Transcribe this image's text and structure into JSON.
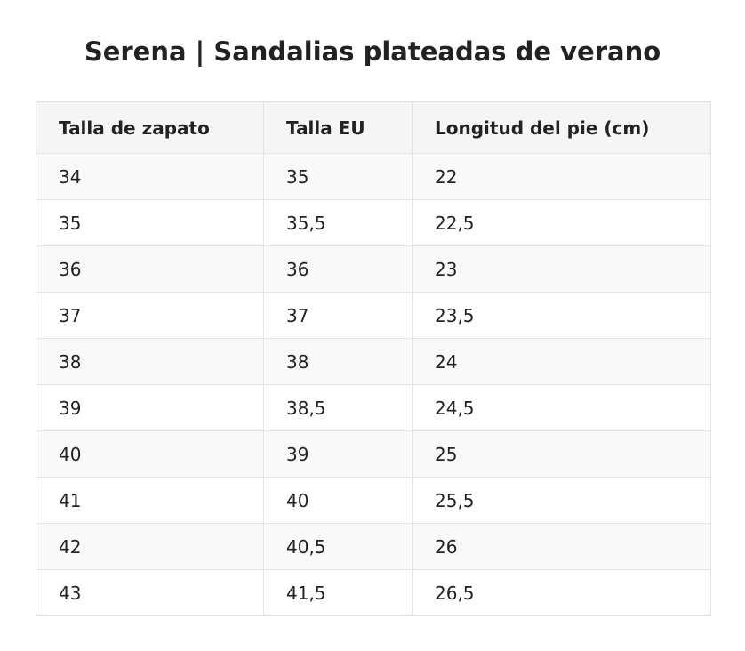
{
  "title": "Serena | Sandalias plateadas de verano",
  "table": {
    "headers": [
      "Talla de zapato",
      "Talla EU",
      "Longitud del pie (cm)"
    ],
    "rows": [
      [
        "34",
        "35",
        "22"
      ],
      [
        "35",
        "35,5",
        "22,5"
      ],
      [
        "36",
        "36",
        "23"
      ],
      [
        "37",
        "37",
        "23,5"
      ],
      [
        "38",
        "38",
        "24"
      ],
      [
        "39",
        "38,5",
        "24,5"
      ],
      [
        "40",
        "39",
        "25"
      ],
      [
        "41",
        "40",
        "25,5"
      ],
      [
        "42",
        "40,5",
        "26"
      ],
      [
        "43",
        "41,5",
        "26,5"
      ]
    ]
  }
}
